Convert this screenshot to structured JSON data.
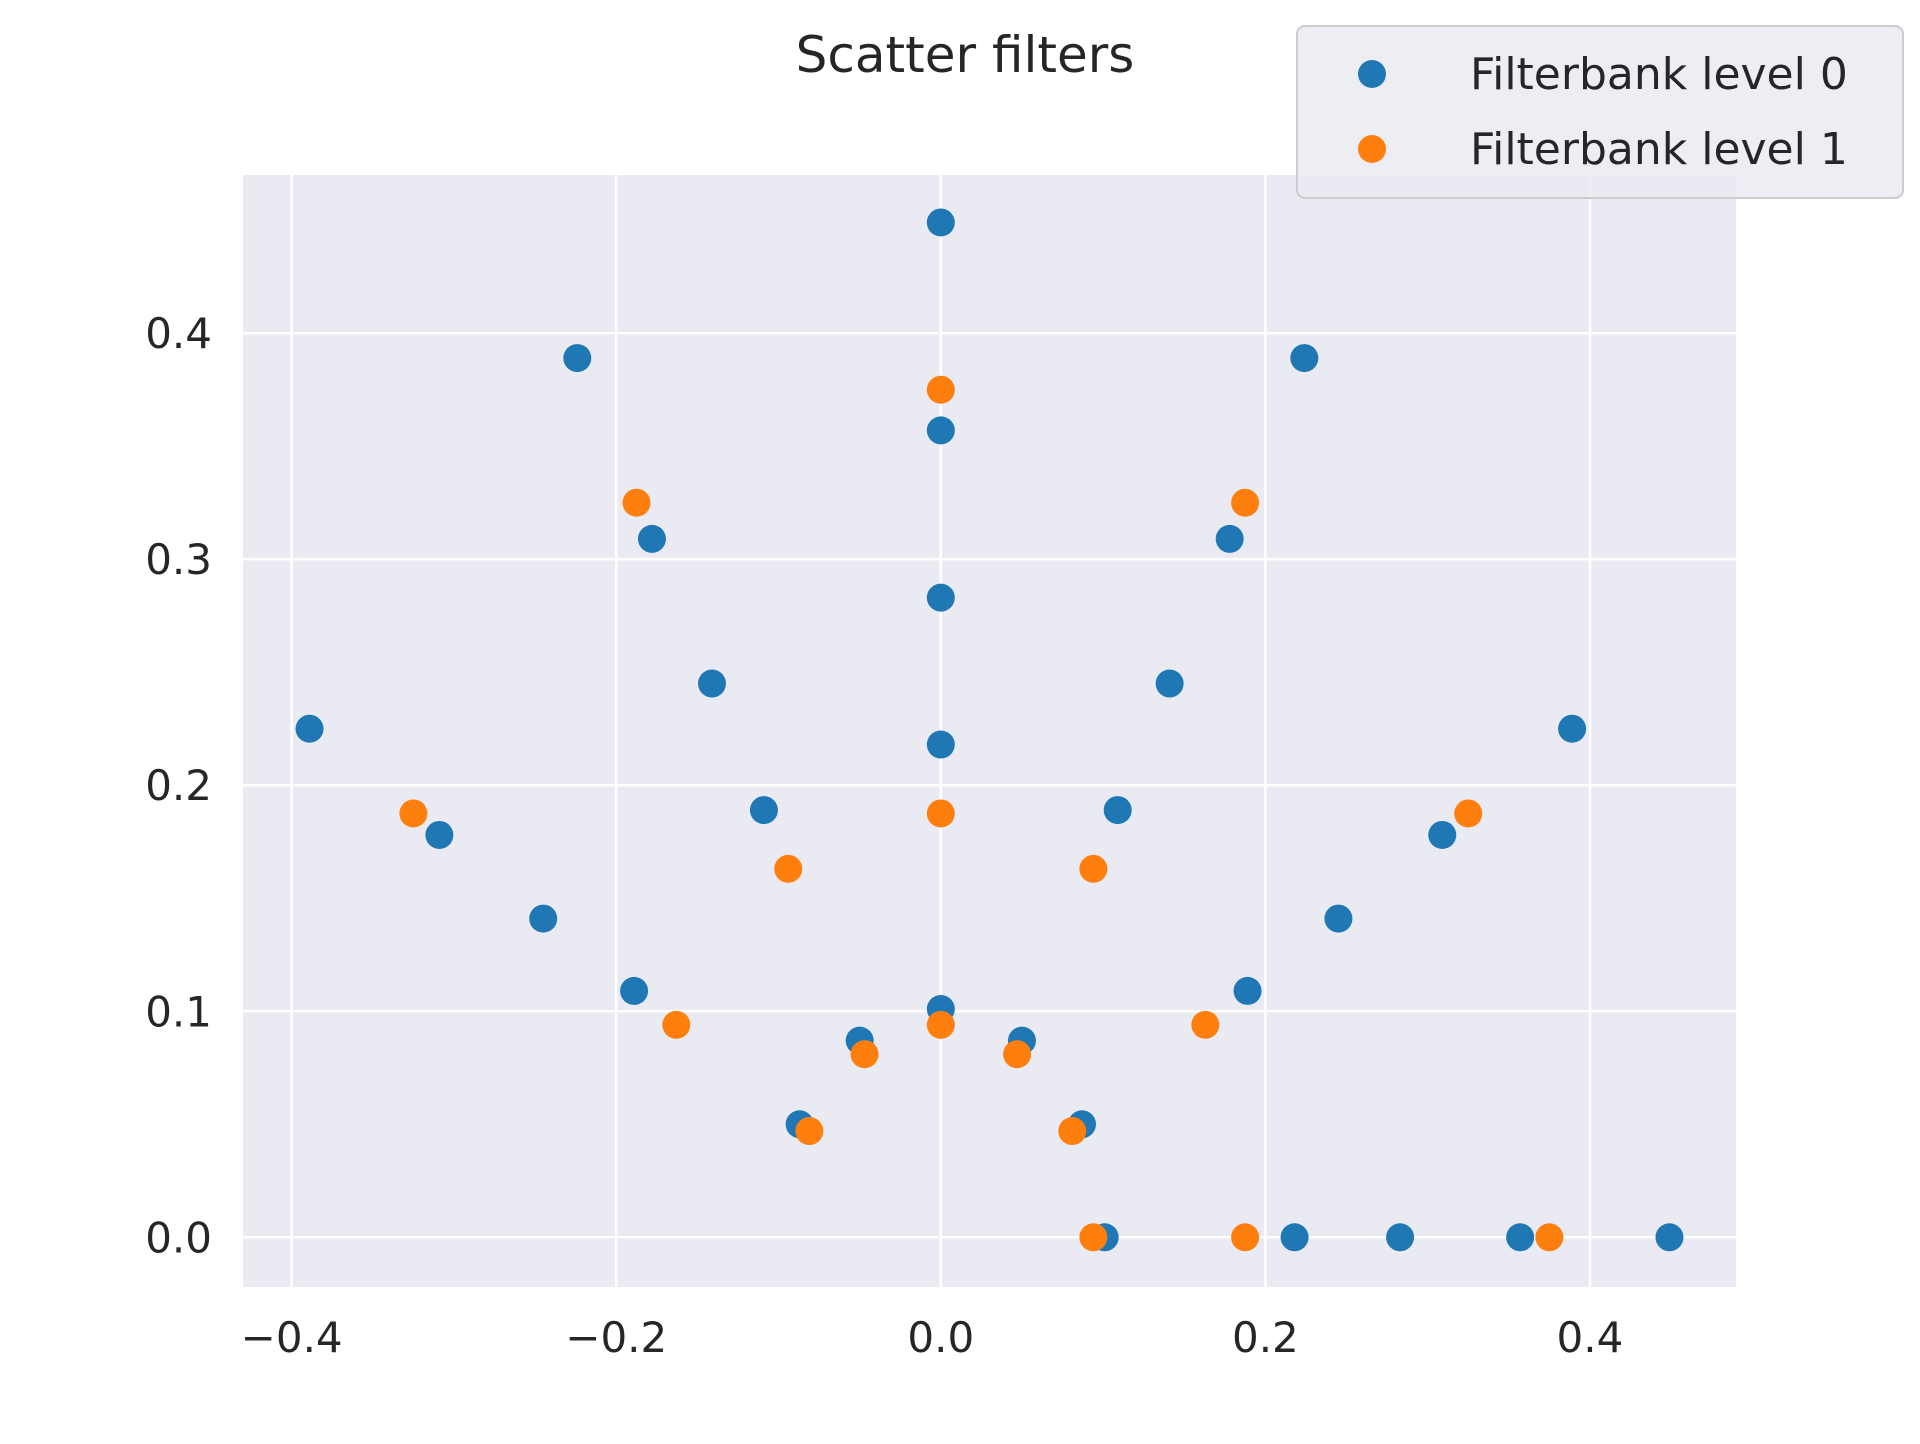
{
  "chart_data": {
    "type": "scatter",
    "title": "Scatter filters",
    "xlabel": "",
    "ylabel": "",
    "xlim": [
      -0.43,
      0.49
    ],
    "ylim": [
      -0.022,
      0.47
    ],
    "xticks": [
      -0.4,
      -0.2,
      0.0,
      0.2,
      0.4
    ],
    "xtick_labels": [
      "−0.4",
      "−0.2",
      "0.0",
      "0.2",
      "0.4"
    ],
    "yticks": [
      0.0,
      0.1,
      0.2,
      0.3,
      0.4
    ],
    "ytick_labels": [
      "0.0",
      "0.1",
      "0.2",
      "0.3",
      "0.4"
    ],
    "grid": true,
    "legend_position": "top-right",
    "background_color": "#eaeaf2",
    "grid_color": "#ffffff",
    "series": [
      {
        "name": "Filterbank level 0",
        "color": "#1f77b4",
        "points": [
          [
            0.0,
            0.449
          ],
          [
            0.0,
            0.357
          ],
          [
            0.0,
            0.283
          ],
          [
            0.0,
            0.218
          ],
          [
            0.0,
            0.101
          ],
          [
            -0.224,
            0.389
          ],
          [
            0.224,
            0.389
          ],
          [
            -0.178,
            0.309
          ],
          [
            0.178,
            0.309
          ],
          [
            -0.141,
            0.245
          ],
          [
            0.141,
            0.245
          ],
          [
            -0.389,
            0.225
          ],
          [
            0.389,
            0.225
          ],
          [
            -0.109,
            0.189
          ],
          [
            0.109,
            0.189
          ],
          [
            -0.309,
            0.178
          ],
          [
            0.309,
            0.178
          ],
          [
            -0.245,
            0.141
          ],
          [
            0.245,
            0.141
          ],
          [
            -0.189,
            0.109
          ],
          [
            0.189,
            0.109
          ],
          [
            -0.05,
            0.087
          ],
          [
            0.05,
            0.087
          ],
          [
            -0.087,
            0.05
          ],
          [
            0.087,
            0.05
          ],
          [
            0.101,
            0.0
          ],
          [
            0.218,
            0.0
          ],
          [
            0.283,
            0.0
          ],
          [
            0.357,
            0.0
          ],
          [
            0.449,
            0.0
          ]
        ]
      },
      {
        "name": "Filterbank level 1",
        "color": "#ff7f0e",
        "points": [
          [
            0.0,
            0.375
          ],
          [
            0.0,
            0.1875
          ],
          [
            0.0,
            0.094
          ],
          [
            -0.1875,
            0.325
          ],
          [
            0.1875,
            0.325
          ],
          [
            -0.325,
            0.1875
          ],
          [
            0.325,
            0.1875
          ],
          [
            -0.094,
            0.163
          ],
          [
            0.094,
            0.163
          ],
          [
            -0.163,
            0.094
          ],
          [
            0.163,
            0.094
          ],
          [
            -0.047,
            0.081
          ],
          [
            0.047,
            0.081
          ],
          [
            -0.081,
            0.047
          ],
          [
            0.081,
            0.047
          ],
          [
            0.094,
            0.0
          ],
          [
            0.1875,
            0.0
          ],
          [
            0.375,
            0.0
          ]
        ]
      }
    ]
  }
}
